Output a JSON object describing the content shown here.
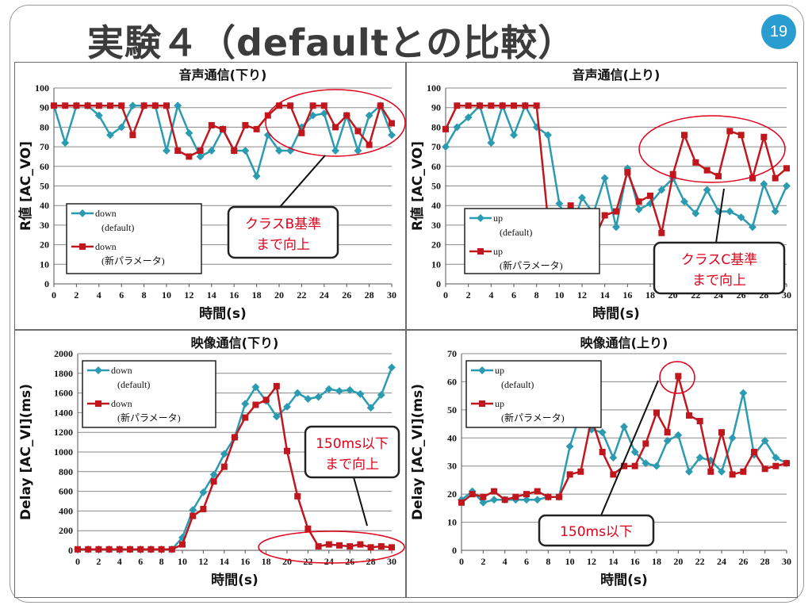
{
  "slide": {
    "title": "実験４（defaultとの比較）",
    "page_number": "19"
  },
  "colors": {
    "default_series": "#2a9bb0",
    "new_series": "#c0171e",
    "callout_border": "#222222",
    "callout_text": "#e0001b",
    "highlight_ellipse": "#e0001b"
  },
  "chart_data": [
    {
      "type": "line",
      "title": "音声通信(下り)",
      "xlabel": "時間(s)",
      "ylabel": "R値 [AC_VO]",
      "xlim": [
        0,
        30
      ],
      "ylim": [
        0,
        100
      ],
      "x_ticks": [
        "0",
        "2",
        "4",
        "6",
        "8",
        "10",
        "12",
        "14",
        "16",
        "18",
        "20",
        "22",
        "24",
        "26",
        "28",
        "30"
      ],
      "y_ticks": [
        "0",
        "10",
        "20",
        "30",
        "40",
        "50",
        "60",
        "70",
        "80",
        "90",
        "100"
      ],
      "grid": true,
      "legend_position": "bottom-left",
      "x": [
        0,
        1,
        2,
        3,
        4,
        5,
        6,
        7,
        8,
        9,
        10,
        11,
        12,
        13,
        14,
        15,
        16,
        17,
        18,
        19,
        20,
        21,
        22,
        23,
        24,
        25,
        26,
        27,
        28,
        29,
        30
      ],
      "series": [
        {
          "name": "down (default)",
          "legend_line1": "down",
          "legend_line2": "(default)",
          "values": [
            91,
            72,
            91,
            91,
            86,
            76,
            80,
            91,
            91,
            91,
            68,
            91,
            77,
            65,
            68,
            79,
            68,
            68,
            55,
            76,
            68,
            68,
            80,
            86,
            87,
            68,
            86,
            68,
            86,
            91,
            76
          ]
        },
        {
          "name": "down (新パラメータ)",
          "legend_line1": "down",
          "legend_line2": "(新パラメータ)",
          "values": [
            91,
            91,
            91,
            91,
            91,
            91,
            91,
            76,
            91,
            91,
            91,
            68,
            65,
            68,
            81,
            79,
            68,
            81,
            79,
            86,
            91,
            91,
            77,
            91,
            91,
            80,
            86,
            78,
            71,
            91,
            82
          ]
        }
      ],
      "annotation": {
        "line1": "クラスB基準",
        "line2": "まで向上"
      }
    },
    {
      "type": "line",
      "title": "音声通信(上り)",
      "xlabel": "時間(s)",
      "ylabel": "R値 [AC_VO]",
      "xlim": [
        0,
        30
      ],
      "ylim": [
        0,
        100
      ],
      "x_ticks": [
        "0",
        "2",
        "4",
        "6",
        "8",
        "10",
        "12",
        "14",
        "16",
        "18",
        "20",
        "22",
        "24",
        "26",
        "28",
        "30"
      ],
      "y_ticks": [
        "0",
        "10",
        "20",
        "30",
        "40",
        "50",
        "60",
        "70",
        "80",
        "90",
        "100"
      ],
      "grid": true,
      "legend_position": "bottom-left",
      "x": [
        0,
        1,
        2,
        3,
        4,
        5,
        6,
        7,
        8,
        9,
        10,
        11,
        12,
        13,
        14,
        15,
        16,
        17,
        18,
        19,
        20,
        21,
        22,
        23,
        24,
        25,
        26,
        27,
        28,
        29,
        30
      ],
      "series": [
        {
          "name": "up (default)",
          "legend_line1": "up",
          "legend_line2": "(default)",
          "values": [
            70,
            80,
            85,
            91,
            72,
            91,
            76,
            91,
            80,
            76,
            41,
            27,
            44,
            36,
            54,
            29,
            59,
            38,
            41,
            48,
            54,
            42,
            36,
            48,
            37,
            37,
            34,
            29,
            51,
            37,
            50
          ]
        },
        {
          "name": "up (新パラメータ)",
          "legend_line1": "up",
          "legend_line2": "(新パラメータ)",
          "values": [
            79,
            91,
            91,
            91,
            91,
            91,
            91,
            91,
            91,
            33,
            31,
            40,
            18,
            22,
            35,
            37,
            57,
            42,
            45,
            26,
            56,
            76,
            62,
            58,
            55,
            78,
            76,
            54,
            75,
            54,
            59
          ]
        }
      ],
      "annotation": {
        "line1": "クラスC基準",
        "line2": "まで向上"
      }
    },
    {
      "type": "line",
      "title": "映像通信(下り)",
      "xlabel": "時間(s)",
      "ylabel": "Delay [AC_VI](ms)",
      "xlim": [
        0,
        30
      ],
      "ylim": [
        0,
        2000
      ],
      "x_ticks": [
        "0",
        "2",
        "4",
        "6",
        "8",
        "10",
        "12",
        "14",
        "16",
        "18",
        "20",
        "22",
        "24",
        "26",
        "28",
        "30"
      ],
      "y_ticks": [
        "0",
        "200",
        "400",
        "600",
        "800",
        "1000",
        "1200",
        "1400",
        "1600",
        "1800",
        "2000"
      ],
      "grid": true,
      "legend_position": "top-left",
      "x": [
        0,
        1,
        2,
        3,
        4,
        5,
        6,
        7,
        8,
        9,
        10,
        11,
        12,
        13,
        14,
        15,
        16,
        17,
        18,
        19,
        20,
        21,
        22,
        23,
        24,
        25,
        26,
        27,
        28,
        29,
        30
      ],
      "series": [
        {
          "name": "down (default)",
          "legend_line1": "down",
          "legend_line2": "(default)",
          "values": [
            10,
            10,
            10,
            10,
            10,
            10,
            10,
            10,
            10,
            10,
            130,
            410,
            590,
            770,
            980,
            1150,
            1490,
            1660,
            1520,
            1360,
            1460,
            1600,
            1540,
            1560,
            1640,
            1620,
            1630,
            1590,
            1450,
            1580,
            1860
          ]
        },
        {
          "name": "down (新パラメータ)",
          "legend_line1": "down",
          "legend_line2": "(新パラメータ)",
          "values": [
            10,
            10,
            10,
            10,
            10,
            10,
            10,
            10,
            10,
            10,
            60,
            350,
            420,
            700,
            850,
            1150,
            1350,
            1480,
            1530,
            1670,
            1010,
            550,
            220,
            40,
            60,
            50,
            40,
            60,
            30,
            40,
            30
          ]
        }
      ],
      "annotation": {
        "line1": "150ms以下",
        "line2": "まで向上"
      }
    },
    {
      "type": "line",
      "title": "映像通信(上り)",
      "xlabel": "時間(s)",
      "ylabel": "Delay [AC_VI](ms)",
      "xlim": [
        0,
        30
      ],
      "ylim": [
        0,
        70
      ],
      "x_ticks": [
        "0",
        "2",
        "4",
        "6",
        "8",
        "10",
        "12",
        "14",
        "16",
        "18",
        "20",
        "22",
        "24",
        "26",
        "28",
        "30"
      ],
      "y_ticks": [
        "0",
        "10",
        "20",
        "30",
        "40",
        "50",
        "60",
        "70"
      ],
      "grid": true,
      "legend_position": "top-left",
      "x": [
        0,
        1,
        2,
        3,
        4,
        5,
        6,
        7,
        8,
        9,
        10,
        11,
        12,
        13,
        14,
        15,
        16,
        17,
        18,
        19,
        20,
        21,
        22,
        23,
        24,
        25,
        26,
        27,
        28,
        29,
        30
      ],
      "series": [
        {
          "name": "up (default)",
          "legend_line1": "up",
          "legend_line2": "(default)",
          "values": [
            18,
            21,
            17,
            18,
            18,
            18,
            18,
            18,
            19,
            19,
            37,
            49,
            43,
            42,
            33,
            44,
            35,
            31,
            30,
            39,
            41,
            28,
            33,
            32,
            28,
            40,
            56,
            34,
            39,
            33,
            31
          ]
        },
        {
          "name": "up (新パラメータ)",
          "legend_line1": "up",
          "legend_line2": "(新パラメータ)",
          "values": [
            17,
            20,
            19,
            21,
            18,
            19,
            20,
            21,
            19,
            19,
            27,
            28,
            47,
            35,
            27,
            30,
            30,
            38,
            49,
            42,
            62,
            48,
            46,
            28,
            42,
            27,
            28,
            35,
            29,
            30,
            31
          ]
        }
      ],
      "annotation": {
        "line1": "150ms以下",
        "line2": ""
      }
    }
  ]
}
